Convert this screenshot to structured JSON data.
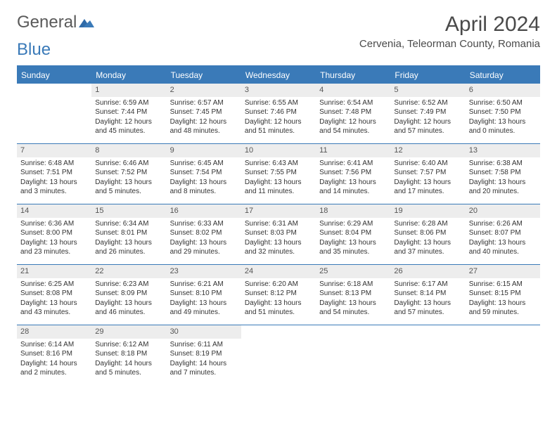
{
  "logo": {
    "word1": "General",
    "word2": "Blue"
  },
  "title": "April 2024",
  "location": "Cervenia, Teleorman County, Romania",
  "colors": {
    "accent": "#3a7ab8",
    "daynum_bg": "#ededed",
    "text": "#333333",
    "header_text": "#ffffff",
    "bg": "#ffffff"
  },
  "weekdays": [
    "Sunday",
    "Monday",
    "Tuesday",
    "Wednesday",
    "Thursday",
    "Friday",
    "Saturday"
  ],
  "weeks": [
    [
      {
        "day": "",
        "sunrise": "",
        "sunset": "",
        "daylight": ""
      },
      {
        "day": "1",
        "sunrise": "Sunrise: 6:59 AM",
        "sunset": "Sunset: 7:44 PM",
        "daylight": "Daylight: 12 hours and 45 minutes."
      },
      {
        "day": "2",
        "sunrise": "Sunrise: 6:57 AM",
        "sunset": "Sunset: 7:45 PM",
        "daylight": "Daylight: 12 hours and 48 minutes."
      },
      {
        "day": "3",
        "sunrise": "Sunrise: 6:55 AM",
        "sunset": "Sunset: 7:46 PM",
        "daylight": "Daylight: 12 hours and 51 minutes."
      },
      {
        "day": "4",
        "sunrise": "Sunrise: 6:54 AM",
        "sunset": "Sunset: 7:48 PM",
        "daylight": "Daylight: 12 hours and 54 minutes."
      },
      {
        "day": "5",
        "sunrise": "Sunrise: 6:52 AM",
        "sunset": "Sunset: 7:49 PM",
        "daylight": "Daylight: 12 hours and 57 minutes."
      },
      {
        "day": "6",
        "sunrise": "Sunrise: 6:50 AM",
        "sunset": "Sunset: 7:50 PM",
        "daylight": "Daylight: 13 hours and 0 minutes."
      }
    ],
    [
      {
        "day": "7",
        "sunrise": "Sunrise: 6:48 AM",
        "sunset": "Sunset: 7:51 PM",
        "daylight": "Daylight: 13 hours and 3 minutes."
      },
      {
        "day": "8",
        "sunrise": "Sunrise: 6:46 AM",
        "sunset": "Sunset: 7:52 PM",
        "daylight": "Daylight: 13 hours and 5 minutes."
      },
      {
        "day": "9",
        "sunrise": "Sunrise: 6:45 AM",
        "sunset": "Sunset: 7:54 PM",
        "daylight": "Daylight: 13 hours and 8 minutes."
      },
      {
        "day": "10",
        "sunrise": "Sunrise: 6:43 AM",
        "sunset": "Sunset: 7:55 PM",
        "daylight": "Daylight: 13 hours and 11 minutes."
      },
      {
        "day": "11",
        "sunrise": "Sunrise: 6:41 AM",
        "sunset": "Sunset: 7:56 PM",
        "daylight": "Daylight: 13 hours and 14 minutes."
      },
      {
        "day": "12",
        "sunrise": "Sunrise: 6:40 AM",
        "sunset": "Sunset: 7:57 PM",
        "daylight": "Daylight: 13 hours and 17 minutes."
      },
      {
        "day": "13",
        "sunrise": "Sunrise: 6:38 AM",
        "sunset": "Sunset: 7:58 PM",
        "daylight": "Daylight: 13 hours and 20 minutes."
      }
    ],
    [
      {
        "day": "14",
        "sunrise": "Sunrise: 6:36 AM",
        "sunset": "Sunset: 8:00 PM",
        "daylight": "Daylight: 13 hours and 23 minutes."
      },
      {
        "day": "15",
        "sunrise": "Sunrise: 6:34 AM",
        "sunset": "Sunset: 8:01 PM",
        "daylight": "Daylight: 13 hours and 26 minutes."
      },
      {
        "day": "16",
        "sunrise": "Sunrise: 6:33 AM",
        "sunset": "Sunset: 8:02 PM",
        "daylight": "Daylight: 13 hours and 29 minutes."
      },
      {
        "day": "17",
        "sunrise": "Sunrise: 6:31 AM",
        "sunset": "Sunset: 8:03 PM",
        "daylight": "Daylight: 13 hours and 32 minutes."
      },
      {
        "day": "18",
        "sunrise": "Sunrise: 6:29 AM",
        "sunset": "Sunset: 8:04 PM",
        "daylight": "Daylight: 13 hours and 35 minutes."
      },
      {
        "day": "19",
        "sunrise": "Sunrise: 6:28 AM",
        "sunset": "Sunset: 8:06 PM",
        "daylight": "Daylight: 13 hours and 37 minutes."
      },
      {
        "day": "20",
        "sunrise": "Sunrise: 6:26 AM",
        "sunset": "Sunset: 8:07 PM",
        "daylight": "Daylight: 13 hours and 40 minutes."
      }
    ],
    [
      {
        "day": "21",
        "sunrise": "Sunrise: 6:25 AM",
        "sunset": "Sunset: 8:08 PM",
        "daylight": "Daylight: 13 hours and 43 minutes."
      },
      {
        "day": "22",
        "sunrise": "Sunrise: 6:23 AM",
        "sunset": "Sunset: 8:09 PM",
        "daylight": "Daylight: 13 hours and 46 minutes."
      },
      {
        "day": "23",
        "sunrise": "Sunrise: 6:21 AM",
        "sunset": "Sunset: 8:10 PM",
        "daylight": "Daylight: 13 hours and 49 minutes."
      },
      {
        "day": "24",
        "sunrise": "Sunrise: 6:20 AM",
        "sunset": "Sunset: 8:12 PM",
        "daylight": "Daylight: 13 hours and 51 minutes."
      },
      {
        "day": "25",
        "sunrise": "Sunrise: 6:18 AM",
        "sunset": "Sunset: 8:13 PM",
        "daylight": "Daylight: 13 hours and 54 minutes."
      },
      {
        "day": "26",
        "sunrise": "Sunrise: 6:17 AM",
        "sunset": "Sunset: 8:14 PM",
        "daylight": "Daylight: 13 hours and 57 minutes."
      },
      {
        "day": "27",
        "sunrise": "Sunrise: 6:15 AM",
        "sunset": "Sunset: 8:15 PM",
        "daylight": "Daylight: 13 hours and 59 minutes."
      }
    ],
    [
      {
        "day": "28",
        "sunrise": "Sunrise: 6:14 AM",
        "sunset": "Sunset: 8:16 PM",
        "daylight": "Daylight: 14 hours and 2 minutes."
      },
      {
        "day": "29",
        "sunrise": "Sunrise: 6:12 AM",
        "sunset": "Sunset: 8:18 PM",
        "daylight": "Daylight: 14 hours and 5 minutes."
      },
      {
        "day": "30",
        "sunrise": "Sunrise: 6:11 AM",
        "sunset": "Sunset: 8:19 PM",
        "daylight": "Daylight: 14 hours and 7 minutes."
      },
      {
        "day": "",
        "sunrise": "",
        "sunset": "",
        "daylight": ""
      },
      {
        "day": "",
        "sunrise": "",
        "sunset": "",
        "daylight": ""
      },
      {
        "day": "",
        "sunrise": "",
        "sunset": "",
        "daylight": ""
      },
      {
        "day": "",
        "sunrise": "",
        "sunset": "",
        "daylight": ""
      }
    ]
  ]
}
